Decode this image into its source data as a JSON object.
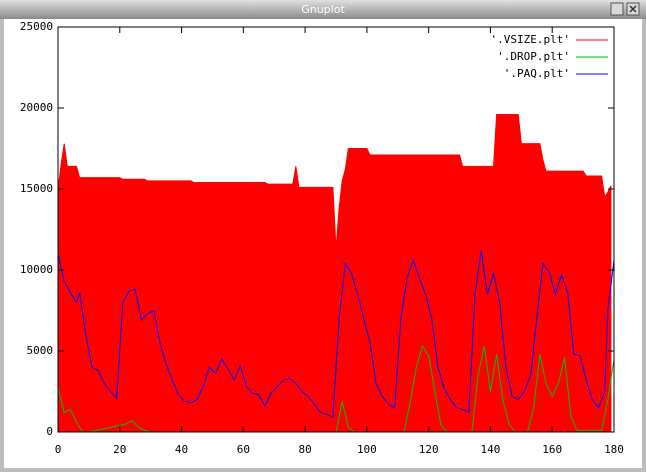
{
  "window_title": "Gnuplot",
  "chart_data": {
    "type": "line",
    "xlim": [
      0,
      180
    ],
    "xticks": [
      0,
      20,
      40,
      60,
      80,
      100,
      120,
      140,
      160,
      180
    ],
    "ylim": [
      0,
      25000
    ],
    "yticks": [
      0,
      5000,
      10000,
      15000,
      20000,
      25000
    ],
    "legend": "top-right",
    "series": [
      {
        "name": "'.VSIZE.plt'",
        "color": "#ff0000",
        "fill": true,
        "x": [
          0,
          1,
          2,
          3,
          4,
          6,
          7,
          20,
          21,
          28,
          29,
          43,
          44,
          67,
          68,
          76,
          77,
          78,
          89,
          90,
          91,
          92,
          93,
          94,
          100,
          101,
          130,
          131,
          141,
          142,
          149,
          150,
          156,
          157,
          158,
          170,
          171,
          176,
          177,
          178,
          179
        ],
        "values": [
          15000,
          16500,
          17800,
          16400,
          16400,
          16400,
          15700,
          15700,
          15600,
          15600,
          15500,
          15500,
          15400,
          15400,
          15300,
          15300,
          16400,
          15100,
          15100,
          11300,
          13800,
          15500,
          16200,
          17500,
          17500,
          17100,
          17100,
          16400,
          16400,
          19600,
          19600,
          17800,
          17800,
          16800,
          16100,
          16100,
          15800,
          15800,
          14500,
          14800,
          15200
        ]
      },
      {
        "name": "'.DROP.plt'",
        "color": "#00c000",
        "fill": false,
        "x": [
          0,
          2,
          4,
          6,
          8,
          10,
          20,
          22,
          24,
          26,
          28,
          30,
          90,
          92,
          94,
          96,
          112,
          114,
          116,
          118,
          120,
          122,
          124,
          126,
          134,
          136,
          138,
          140,
          142,
          144,
          146,
          148,
          152,
          154,
          156,
          158,
          160,
          162,
          164,
          166,
          168,
          176,
          178,
          180
        ],
        "values": [
          2700,
          1200,
          1400,
          600,
          0,
          0,
          400,
          500,
          700,
          300,
          100,
          0,
          0,
          1900,
          300,
          0,
          0,
          1800,
          4000,
          5300,
          4700,
          2500,
          400,
          0,
          0,
          3500,
          5300,
          2500,
          4800,
          2000,
          500,
          0,
          0,
          1500,
          4800,
          3000,
          2200,
          3000,
          4600,
          1000,
          100,
          100,
          2000,
          4500
        ]
      },
      {
        "name": "'.PAQ.plt'",
        "color": "#0000ff",
        "fill": false,
        "x": [
          0,
          2,
          4,
          6,
          7,
          9,
          11,
          13,
          15,
          17,
          19,
          21,
          23,
          25,
          27,
          29,
          31,
          33,
          35,
          37,
          39,
          41,
          43,
          45,
          47,
          49,
          51,
          53,
          55,
          57,
          59,
          61,
          63,
          65,
          67,
          69,
          71,
          73,
          75,
          77,
          79,
          81,
          83,
          85,
          87,
          89,
          91,
          93,
          95,
          97,
          99,
          101,
          103,
          105,
          107,
          109,
          111,
          113,
          115,
          117,
          119,
          121,
          123,
          125,
          127,
          129,
          131,
          133,
          135,
          137,
          139,
          141,
          143,
          145,
          147,
          149,
          151,
          153,
          155,
          157,
          159,
          161,
          163,
          165,
          167,
          169,
          171,
          173,
          175,
          177,
          178,
          180
        ],
        "values": [
          11000,
          9300,
          8600,
          8000,
          8600,
          6000,
          4000,
          3800,
          3000,
          2500,
          2100,
          8000,
          8700,
          8800,
          6900,
          7300,
          7500,
          5500,
          4200,
          3200,
          2300,
          1900,
          1800,
          2000,
          2800,
          4000,
          3600,
          4500,
          3900,
          3200,
          4100,
          2800,
          2400,
          2300,
          1600,
          2400,
          2800,
          3200,
          3300,
          3000,
          2500,
          2200,
          1700,
          1200,
          1100,
          900,
          7000,
          10400,
          9800,
          8500,
          7000,
          5500,
          3000,
          2200,
          1700,
          1500,
          7000,
          9500,
          10600,
          9500,
          8500,
          7000,
          4000,
          2700,
          2000,
          1500,
          1400,
          1200,
          8500,
          11200,
          8500,
          9800,
          8000,
          4000,
          2200,
          2000,
          2500,
          3500,
          7000,
          10400,
          9900,
          8500,
          9700,
          8600,
          4800,
          4700,
          3200,
          2000,
          1500,
          2500,
          7500,
          10600
        ]
      }
    ]
  }
}
